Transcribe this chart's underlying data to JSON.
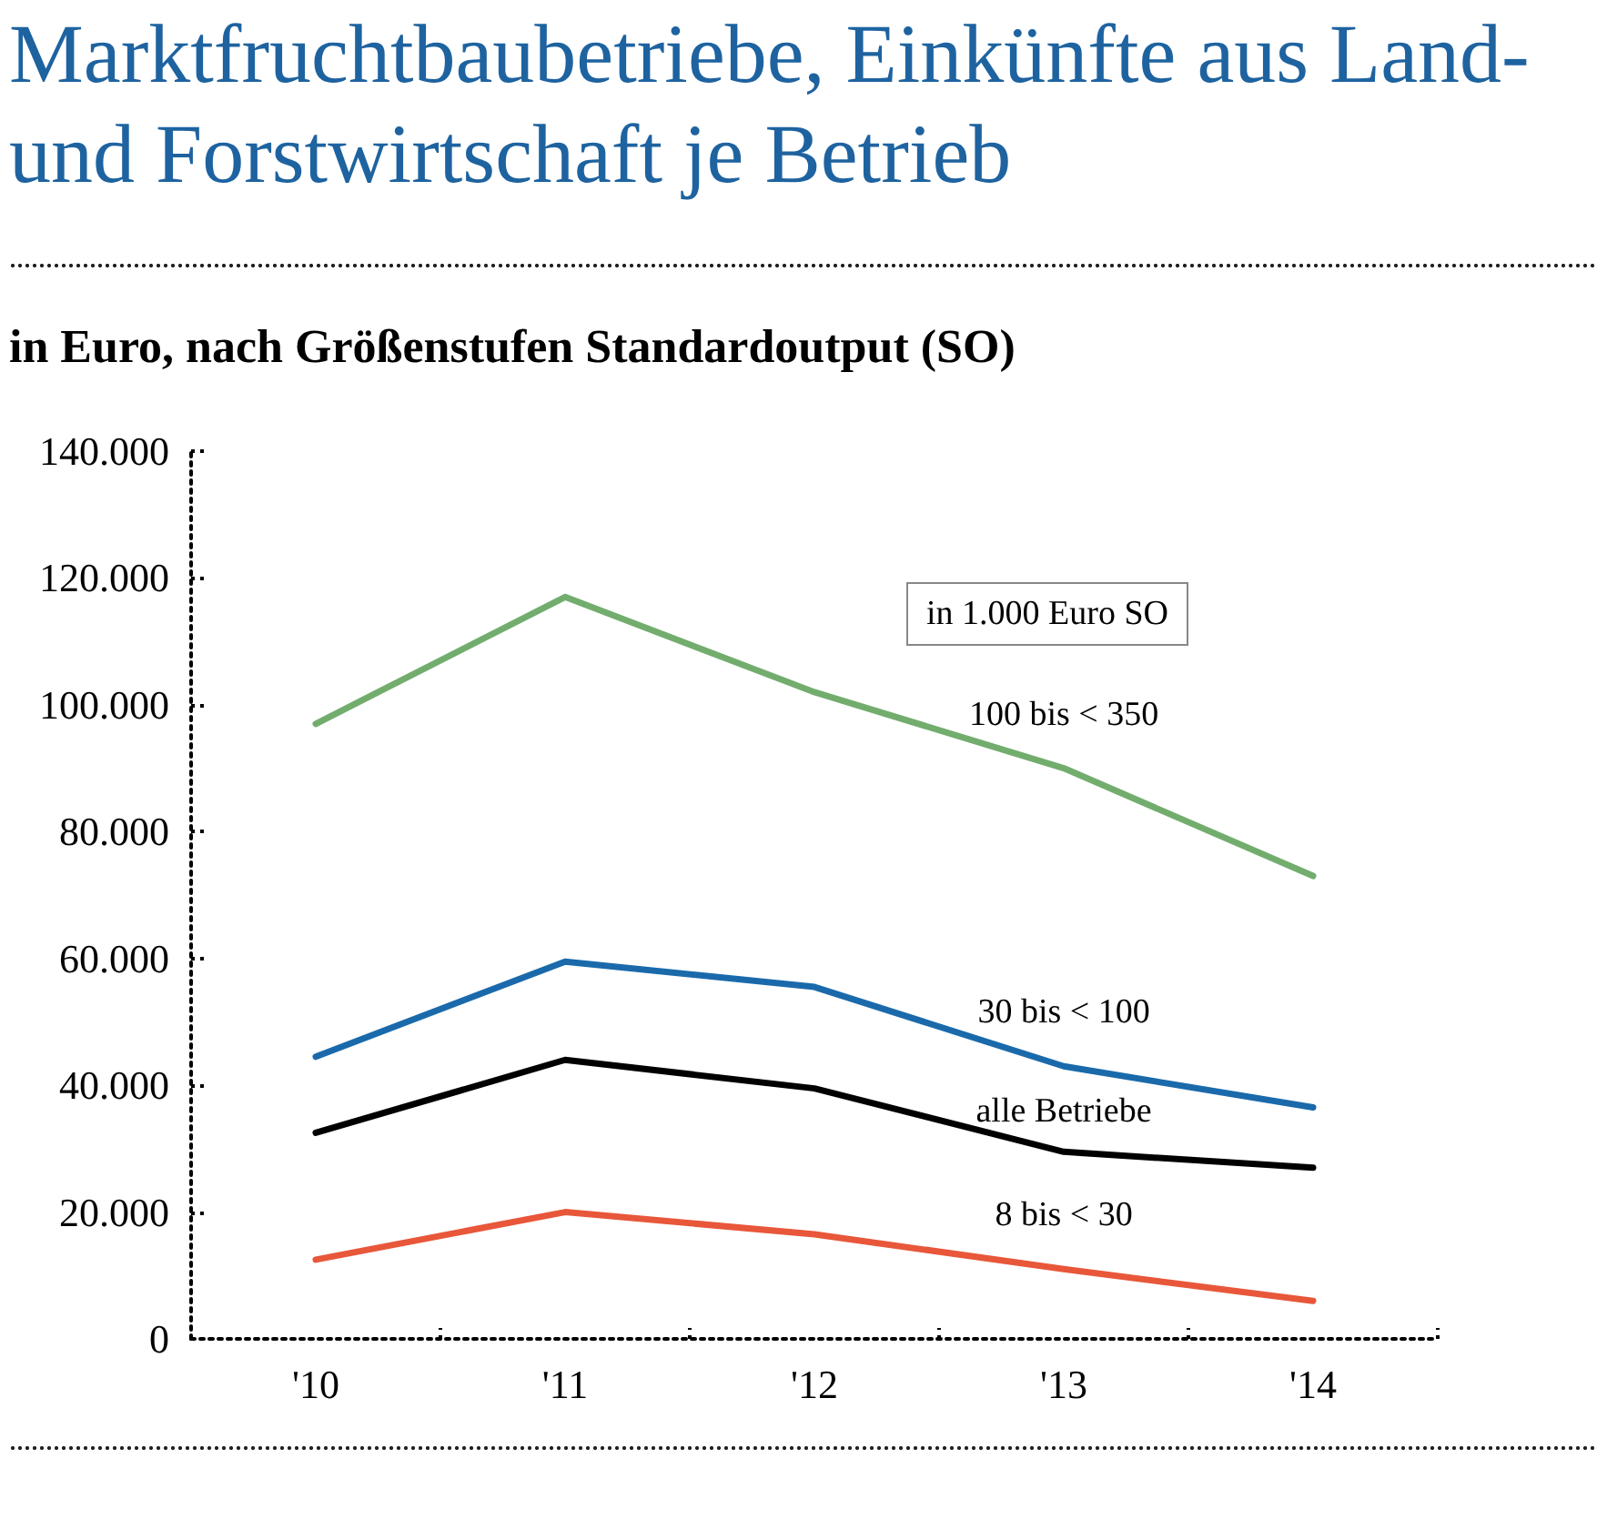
{
  "chart_data": {
    "type": "line",
    "title": "Marktfruchtbaubetriebe, Einkünfte aus Land- und Forstwirtschaft je Betrieb",
    "subtitle": "in Euro, nach Größenstufen Standardoutput (SO)",
    "legend_title": "in 1.000 Euro SO",
    "categories": [
      "'10",
      "'11",
      "'12",
      "'13",
      "'14"
    ],
    "series": [
      {
        "name": "100 bis < 350",
        "color": "#72ad6e",
        "values": [
          97000,
          117000,
          102000,
          90000,
          73000
        ]
      },
      {
        "name": "30 bis < 100",
        "color": "#1a6aab",
        "values": [
          44500,
          59500,
          55500,
          43000,
          36500
        ]
      },
      {
        "name": "alle Betriebe",
        "color": "#000000",
        "values": [
          32500,
          44000,
          39500,
          29500,
          27000
        ]
      },
      {
        "name": "8 bis < 30",
        "color": "#e8573a",
        "values": [
          12500,
          20000,
          16500,
          11000,
          6000
        ]
      }
    ],
    "ylim": [
      0,
      140000
    ],
    "yticks": [
      0,
      {
        "value": 20000,
        "label": "20.000"
      },
      {
        "value": 40000,
        "label": "40.000"
      },
      {
        "value": 60000,
        "label": "60.000"
      },
      {
        "value": 80000,
        "label": "80.000"
      },
      {
        "value": 100000,
        "label": "100.000"
      },
      {
        "value": 120000,
        "label": "120.000"
      },
      {
        "value": 140000,
        "label": "140.000"
      }
    ]
  }
}
